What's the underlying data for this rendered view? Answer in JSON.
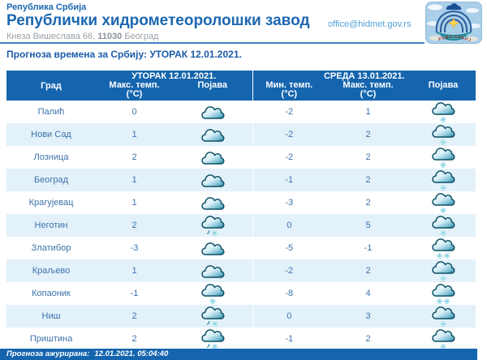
{
  "page": {
    "country_label": "Република Србија",
    "title": "Републички хидрометеоролошки завод",
    "address_street": "Кнеза Вишеслава 66,",
    "address_zip": "11030",
    "address_city": "Београд",
    "email": "office@hidmet.gov.rs",
    "logo_text": "РХМЗ СРБИЈЕ"
  },
  "forecast": {
    "heading_label": "Прогноза времена за Србију:",
    "heading_date": "УТОРАК  12.01.2021."
  },
  "table": {
    "city_header": "Град",
    "day1_label": "УТОРАК  12.01.2021.",
    "day2_label": "СРЕДА  13.01.2021.",
    "cols": {
      "tue_max": {
        "label": "Макс. темп.",
        "unit": "(°C)"
      },
      "tue_icon": {
        "label": "Појава"
      },
      "wed_min": {
        "label": "Мин. темп.",
        "unit": "(°C)"
      },
      "wed_max": {
        "label": "Макс. темп.",
        "unit": "(°C)"
      },
      "wed_icon": {
        "label": "Појава"
      }
    },
    "rows": [
      {
        "city": "Палић",
        "tue_max": "0",
        "tue_icon": "cloudy",
        "wed_min": "-2",
        "wed_max": "1",
        "wed_icon": "light-snow"
      },
      {
        "city": "Нови Сад",
        "tue_max": "1",
        "tue_icon": "cloudy",
        "wed_min": "-2",
        "wed_max": "2",
        "wed_icon": "light-snow"
      },
      {
        "city": "Лозница",
        "tue_max": "2",
        "tue_icon": "cloudy",
        "wed_min": "-2",
        "wed_max": "2",
        "wed_icon": "light-snow"
      },
      {
        "city": "Београд",
        "tue_max": "1",
        "tue_icon": "cloudy",
        "wed_min": "-1",
        "wed_max": "2",
        "wed_icon": "light-snow"
      },
      {
        "city": "Крагујевац",
        "tue_max": "1",
        "tue_icon": "cloudy",
        "wed_min": "-3",
        "wed_max": "2",
        "wed_icon": "light-snow"
      },
      {
        "city": "Неготин",
        "tue_max": "2",
        "tue_icon": "sleet",
        "wed_min": "0",
        "wed_max": "5",
        "wed_icon": "light-snow"
      },
      {
        "city": "Златибор",
        "tue_max": "-3",
        "tue_icon": "cloudy",
        "wed_min": "-5",
        "wed_max": "-1",
        "wed_icon": "snow"
      },
      {
        "city": "Краљево",
        "tue_max": "1",
        "tue_icon": "cloudy",
        "wed_min": "-2",
        "wed_max": "2",
        "wed_icon": "light-snow"
      },
      {
        "city": "Копаоник",
        "tue_max": "-1",
        "tue_icon": "light-snow",
        "wed_min": "-8",
        "wed_max": "4",
        "wed_icon": "snow"
      },
      {
        "city": "Ниш",
        "tue_max": "2",
        "tue_icon": "sleet",
        "wed_min": "0",
        "wed_max": "3",
        "wed_icon": "light-snow"
      },
      {
        "city": "Приштина",
        "tue_max": "2",
        "tue_icon": "sleet",
        "wed_min": "-1",
        "wed_max": "2",
        "wed_icon": "light-snow"
      }
    ]
  },
  "footer": {
    "updated_label": "Прогноза ажурирана:",
    "updated_value": "12.01.2021. 05:04:40"
  },
  "colors": {
    "accent_blue": "#1565ae",
    "title_blue": "#1c67b1",
    "link_blue": "#55a1d7",
    "row_alt_blue": "#e3f1fa",
    "cell_text_blue": "#3c72ab",
    "cloud_teal": "#1f7795"
  }
}
